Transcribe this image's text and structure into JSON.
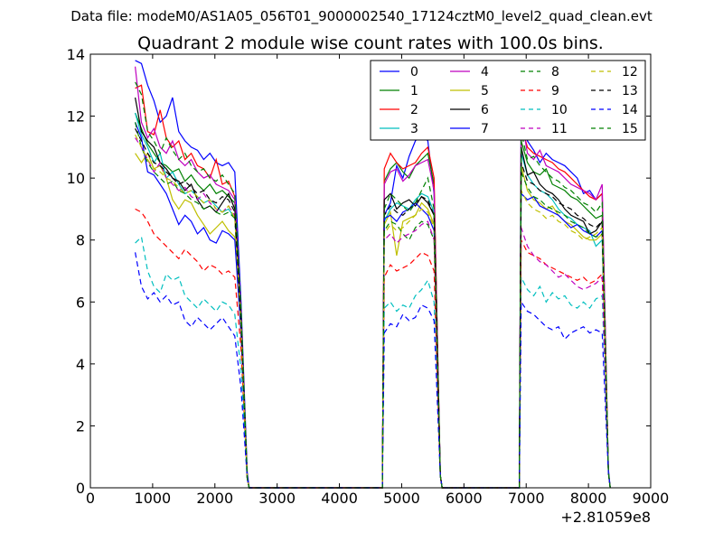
{
  "suptitle": "Data file: modeM0/AS1A05_056T01_9000002540_17124cztM0_level2_quad_clean.evt",
  "chart_data": {
    "type": "line",
    "title": "Quadrant 2 module wise count rates with 100.0s bins.",
    "xlabel": "",
    "ylabel": "",
    "x_offset_label": "+2.81059e8",
    "xlim": [
      0,
      9000
    ],
    "ylim": [
      0,
      14
    ],
    "xticks": [
      0,
      1000,
      2000,
      3000,
      4000,
      5000,
      6000,
      7000,
      8000,
      9000
    ],
    "xtick_labels": [
      "0",
      "1000",
      "2000",
      "3000",
      "4000",
      "5000",
      "6000",
      "7000",
      "8000",
      "9000"
    ],
    "yticks": [
      0,
      2,
      4,
      6,
      8,
      10,
      12,
      14
    ],
    "ytick_labels": [
      "0",
      "2",
      "4",
      "6",
      "8",
      "10",
      "12",
      "14"
    ],
    "grid": false,
    "legend_position": "top-right",
    "legend_columns": 4,
    "segments": [
      {
        "x": [
          720,
          820,
          920,
          1020,
          1120,
          1220,
          1320,
          1420,
          1520,
          1620,
          1720,
          1820,
          1920,
          2020,
          2120,
          2220,
          2320,
          2420,
          2520
        ],
        "end_x": 2550
      },
      {
        "x": [
          4720,
          4820,
          4920,
          5020,
          5120,
          5220,
          5320,
          5420,
          5520,
          5620
        ],
        "end_x": 5650
      },
      {
        "x": [
          6920,
          7020,
          7120,
          7220,
          7320,
          7420,
          7520,
          7620,
          7720,
          7820,
          7920,
          8020,
          8120,
          8220,
          8320
        ],
        "end_x": 8350
      }
    ],
    "series": [
      {
        "name": "0",
        "color": "#0000ff",
        "dash": "solid",
        "segments": [
          [
            13.8,
            13.7,
            13.0,
            12.5,
            11.8,
            12.0,
            12.6,
            11.5,
            11.2,
            11.0,
            10.9,
            10.6,
            10.8,
            10.5,
            10.4,
            10.5,
            10.2,
            6.0,
            0.5
          ],
          [
            8.8,
            9.2,
            10.4,
            10.0,
            10.7,
            11.2,
            11.4,
            11.2,
            9.5,
            0.4
          ],
          [
            12.7,
            11.2,
            10.9,
            10.5,
            10.8,
            10.6,
            10.5,
            10.4,
            10.2,
            10.0,
            9.5,
            9.6,
            9.3,
            9.5,
            0.6
          ]
        ]
      },
      {
        "name": "1",
        "color": "#008000",
        "dash": "solid",
        "segments": [
          [
            12.1,
            11.6,
            11.1,
            10.8,
            10.5,
            10.4,
            10.2,
            10.3,
            9.9,
            10.1,
            9.8,
            9.6,
            9.8,
            9.5,
            9.6,
            9.4,
            9.2,
            5.5,
            0.3
          ],
          [
            9.9,
            10.3,
            10.5,
            10.2,
            10.0,
            10.4,
            10.6,
            10.8,
            9.8,
            0.4
          ],
          [
            11.2,
            10.5,
            10.2,
            10.1,
            10.3,
            9.8,
            9.7,
            9.6,
            9.4,
            9.3,
            9.1,
            8.9,
            8.7,
            8.8,
            0.5
          ]
        ]
      },
      {
        "name": "2",
        "color": "#ff0000",
        "dash": "solid",
        "segments": [
          [
            12.9,
            13.0,
            11.5,
            11.4,
            12.2,
            11.3,
            11.0,
            11.2,
            10.6,
            10.8,
            10.4,
            10.3,
            10.0,
            10.6,
            9.8,
            9.9,
            9.4,
            5.6,
            0.3
          ],
          [
            10.3,
            10.8,
            10.5,
            10.3,
            10.4,
            10.5,
            10.8,
            11.0,
            10.0,
            0.4
          ],
          [
            11.7,
            11.0,
            10.8,
            10.7,
            10.6,
            10.5,
            10.3,
            10.2,
            10.0,
            9.8,
            9.6,
            9.4,
            9.3,
            9.5,
            0.5
          ]
        ]
      },
      {
        "name": "3",
        "color": "#00bfbf",
        "dash": "solid",
        "segments": [
          [
            12.1,
            11.4,
            11.0,
            10.5,
            10.8,
            10.0,
            10.2,
            9.8,
            9.5,
            9.6,
            9.4,
            9.2,
            9.3,
            9.1,
            8.9,
            9.0,
            8.7,
            5.3,
            0.3
          ],
          [
            8.6,
            9.0,
            9.2,
            9.1,
            9.0,
            9.3,
            9.5,
            9.4,
            8.9,
            0.4
          ],
          [
            10.8,
            10.1,
            9.8,
            9.6,
            9.5,
            9.3,
            9.0,
            8.8,
            8.7,
            8.5,
            8.4,
            8.3,
            7.8,
            8.0,
            0.5
          ]
        ]
      },
      {
        "name": "4",
        "color": "#bf00bf",
        "dash": "solid",
        "segments": [
          [
            13.6,
            11.8,
            11.3,
            11.6,
            11.0,
            10.8,
            11.2,
            10.6,
            10.4,
            10.6,
            10.2,
            10.0,
            10.1,
            9.8,
            9.7,
            9.6,
            9.3,
            5.7,
            0.3
          ],
          [
            9.8,
            10.2,
            10.3,
            9.9,
            10.1,
            10.4,
            10.5,
            10.6,
            9.6,
            0.4
          ],
          [
            12.0,
            10.8,
            10.6,
            10.9,
            10.4,
            10.3,
            10.2,
            10.0,
            9.8,
            9.7,
            9.6,
            9.5,
            9.3,
            9.8,
            0.5
          ]
        ]
      },
      {
        "name": "5",
        "color": "#bfbf00",
        "dash": "solid",
        "segments": [
          [
            10.8,
            10.5,
            10.8,
            10.3,
            10.4,
            10.0,
            9.3,
            9.0,
            9.3,
            9.2,
            8.8,
            8.5,
            8.2,
            8.4,
            8.6,
            8.3,
            8.1,
            5.0,
            0.3
          ],
          [
            8.5,
            8.9,
            7.5,
            8.6,
            8.7,
            8.8,
            9.2,
            9.0,
            8.5,
            0.4
          ],
          [
            10.4,
            9.6,
            9.3,
            9.2,
            9.0,
            9.1,
            8.8,
            8.6,
            8.5,
            8.3,
            8.1,
            8.0,
            8.0,
            8.2,
            0.5
          ]
        ]
      },
      {
        "name": "6",
        "color": "#000000",
        "dash": "solid",
        "segments": [
          [
            12.6,
            11.5,
            11.2,
            11.0,
            10.5,
            10.3,
            10.0,
            9.9,
            9.6,
            9.8,
            9.3,
            9.0,
            9.1,
            8.9,
            9.2,
            9.5,
            9.0,
            5.5,
            0.3
          ],
          [
            9.3,
            9.5,
            9.0,
            9.2,
            9.3,
            9.1,
            9.4,
            9.2,
            8.8,
            0.4
          ],
          [
            11.0,
            10.1,
            10.2,
            9.8,
            9.6,
            9.5,
            9.3,
            9.0,
            8.8,
            8.7,
            8.6,
            8.2,
            8.3,
            8.6,
            0.5
          ]
        ]
      },
      {
        "name": "7",
        "color": "#0000ff",
        "dash": "solid",
        "segments": [
          [
            11.8,
            11.3,
            10.2,
            10.1,
            9.8,
            9.5,
            9.0,
            8.5,
            8.8,
            8.6,
            8.2,
            8.4,
            8.0,
            7.9,
            8.3,
            8.2,
            8.0,
            5.0,
            0.3
          ],
          [
            8.7,
            8.8,
            8.6,
            8.9,
            9.0,
            9.2,
            9.0,
            8.8,
            8.3,
            0.4
          ],
          [
            9.5,
            9.3,
            9.4,
            9.1,
            9.0,
            8.9,
            8.8,
            8.6,
            8.4,
            8.5,
            8.3,
            8.2,
            8.1,
            8.3,
            0.5
          ]
        ]
      },
      {
        "name": "8",
        "color": "#008000",
        "dash": "dashed",
        "segments": [
          [
            11.8,
            11.0,
            10.5,
            10.2,
            10.0,
            9.8,
            9.9,
            9.6,
            9.5,
            9.3,
            9.2,
            9.0,
            9.1,
            8.9,
            8.8,
            8.9,
            8.7,
            5.3,
            0.3
          ],
          [
            8.3,
            8.6,
            8.5,
            8.2,
            8.0,
            8.4,
            8.6,
            8.5,
            8.0,
            0.4
          ],
          [
            10.2,
            9.7,
            9.4,
            9.3,
            9.1,
            9.0,
            8.9,
            8.8,
            8.6,
            8.5,
            8.4,
            8.2,
            8.1,
            8.2,
            0.5
          ]
        ]
      },
      {
        "name": "9",
        "color": "#ff0000",
        "dash": "dashed",
        "segments": [
          [
            9.0,
            8.9,
            8.6,
            8.2,
            8.0,
            7.8,
            7.6,
            7.4,
            7.7,
            7.5,
            7.3,
            7.0,
            7.2,
            7.1,
            6.9,
            7.0,
            6.8,
            4.5,
            0.3
          ],
          [
            6.8,
            7.2,
            7.0,
            7.1,
            7.2,
            7.4,
            7.6,
            7.5,
            7.0,
            0.4
          ],
          [
            8.0,
            7.6,
            7.5,
            7.4,
            7.2,
            7.1,
            7.0,
            6.9,
            6.8,
            6.7,
            6.8,
            6.6,
            6.7,
            6.9,
            0.5
          ]
        ]
      },
      {
        "name": "10",
        "color": "#00bfbf",
        "dash": "dashed",
        "segments": [
          [
            7.9,
            8.1,
            7.0,
            6.5,
            6.3,
            6.9,
            6.7,
            6.8,
            6.2,
            6.0,
            5.8,
            6.1,
            5.9,
            5.7,
            6.0,
            5.9,
            5.6,
            3.8,
            0.3
          ],
          [
            5.8,
            6.0,
            5.7,
            5.9,
            5.8,
            6.2,
            6.4,
            6.7,
            6.0,
            0.4
          ],
          [
            6.8,
            6.4,
            6.2,
            6.5,
            6.0,
            6.3,
            6.1,
            6.2,
            5.9,
            5.8,
            6.0,
            5.8,
            6.1,
            6.2,
            0.5
          ]
        ]
      },
      {
        "name": "11",
        "color": "#bf00bf",
        "dash": "dashed",
        "segments": [
          [
            11.3,
            11.0,
            10.6,
            10.2,
            10.5,
            10.0,
            9.8,
            9.6,
            9.7,
            9.4,
            9.3,
            9.5,
            9.2,
            9.0,
            8.9,
            9.1,
            8.8,
            5.4,
            0.3
          ],
          [
            8.0,
            8.2,
            7.9,
            8.1,
            8.2,
            8.3,
            8.5,
            8.6,
            8.0,
            0.4
          ],
          [
            8.4,
            7.8,
            7.5,
            7.3,
            7.2,
            7.0,
            6.8,
            6.9,
            6.7,
            6.5,
            6.4,
            6.5,
            6.6,
            6.8,
            0.5
          ]
        ]
      },
      {
        "name": "12",
        "color": "#bfbf00",
        "dash": "dashed",
        "segments": [
          [
            11.4,
            11.0,
            10.6,
            10.3,
            10.2,
            10.0,
            9.9,
            9.7,
            9.5,
            9.6,
            9.4,
            9.2,
            9.3,
            9.0,
            8.9,
            9.1,
            8.7,
            5.2,
            0.3
          ],
          [
            8.2,
            8.5,
            8.3,
            8.4,
            8.6,
            8.8,
            9.0,
            8.9,
            8.4,
            0.4
          ],
          [
            9.6,
            9.2,
            9.0,
            8.9,
            8.7,
            8.8,
            8.6,
            8.5,
            8.3,
            8.2,
            8.0,
            8.1,
            8.2,
            8.4,
            0.5
          ]
        ]
      },
      {
        "name": "13",
        "color": "#000000",
        "dash": "dashed",
        "segments": [
          [
            11.6,
            11.2,
            10.8,
            10.5,
            10.4,
            10.2,
            10.0,
            9.8,
            9.9,
            9.7,
            9.5,
            9.6,
            9.3,
            9.2,
            9.4,
            9.3,
            8.9,
            5.4,
            0.3
          ],
          [
            8.8,
            9.1,
            8.9,
            8.8,
            9.0,
            9.2,
            9.4,
            9.3,
            8.8,
            0.4
          ],
          [
            10.5,
            9.9,
            9.8,
            9.6,
            9.5,
            9.4,
            9.2,
            9.1,
            9.0,
            8.8,
            8.7,
            8.5,
            8.4,
            8.6,
            0.5
          ]
        ]
      },
      {
        "name": "14",
        "color": "#0000ff",
        "dash": "dashed",
        "segments": [
          [
            7.6,
            6.5,
            6.1,
            6.3,
            6.0,
            6.2,
            5.9,
            6.0,
            5.4,
            5.2,
            5.5,
            5.3,
            5.1,
            5.3,
            5.5,
            5.2,
            4.9,
            3.2,
            0.3
          ],
          [
            5.0,
            5.3,
            5.2,
            5.6,
            5.4,
            5.5,
            5.9,
            5.8,
            5.4,
            0.4
          ],
          [
            6.0,
            5.7,
            5.6,
            5.4,
            5.2,
            5.1,
            5.2,
            4.8,
            5.0,
            5.1,
            5.2,
            5.0,
            5.1,
            5.0,
            0.5
          ]
        ]
      },
      {
        "name": "15",
        "color": "#008000",
        "dash": "dashed",
        "segments": [
          [
            13.1,
            12.7,
            11.5,
            11.2,
            10.8,
            11.3,
            10.9,
            10.6,
            10.8,
            10.4,
            10.2,
            10.3,
            10.0,
            9.9,
            10.1,
            9.8,
            9.5,
            5.8,
            0.3
          ],
          [
            9.0,
            9.5,
            9.3,
            9.1,
            8.9,
            9.2,
            9.6,
            10.0,
            9.0,
            0.4
          ],
          [
            11.5,
            10.6,
            10.7,
            10.4,
            10.2,
            10.0,
            9.9,
            9.7,
            9.6,
            9.4,
            9.2,
            9.1,
            8.9,
            9.2,
            0.5
          ]
        ]
      }
    ]
  }
}
